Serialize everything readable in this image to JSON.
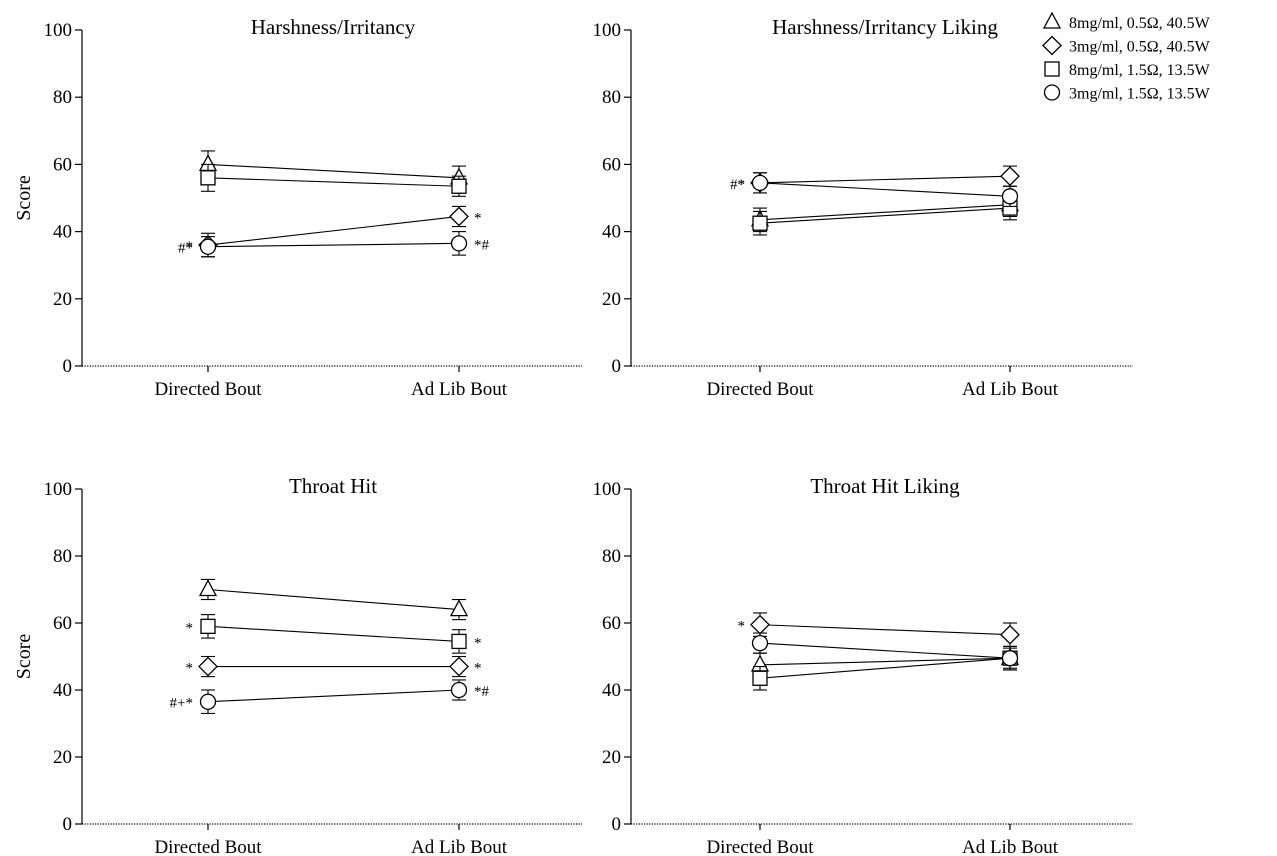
{
  "chart_data": [
    {
      "type": "line",
      "title": "Harshness/Irritancy",
      "ylabel": "Score",
      "xlabel": "",
      "categories": [
        "Directed Bout",
        "Ad Lib Bout"
      ],
      "ylim": [
        0,
        100
      ],
      "yticks": [
        0,
        20,
        40,
        60,
        80,
        100
      ],
      "grid": false,
      "series": [
        {
          "name": "8mg/ml, 0.5Ω, 40.5W",
          "marker": "triangle",
          "values": [
            60,
            56
          ],
          "errors": [
            4,
            3.5
          ],
          "annotations": [
            "",
            ""
          ]
        },
        {
          "name": "3mg/ml, 0.5Ω, 40.5W",
          "marker": "diamond",
          "values": [
            36,
            44.5
          ],
          "errors": [
            3.5,
            3
          ],
          "annotations": [
            "*",
            "*"
          ]
        },
        {
          "name": "8mg/ml, 1.5Ω, 13.5W",
          "marker": "square",
          "values": [
            56,
            53.5
          ],
          "errors": [
            4,
            3
          ],
          "annotations": [
            "",
            ""
          ]
        },
        {
          "name": "3mg/ml, 1.5Ω, 13.5W",
          "marker": "circle",
          "values": [
            35.5,
            36.5
          ],
          "errors": [
            3,
            3.5
          ],
          "annotations": [
            "#*",
            "*#"
          ]
        }
      ]
    },
    {
      "type": "line",
      "title": "Harshness/Irritancy Liking",
      "ylabel": "",
      "xlabel": "",
      "categories": [
        "Directed Bout",
        "Ad Lib Bout"
      ],
      "ylim": [
        0,
        100
      ],
      "yticks": [
        0,
        20,
        40,
        60,
        80,
        100
      ],
      "grid": false,
      "series": [
        {
          "name": "8mg/ml, 0.5Ω, 40.5W",
          "marker": "triangle",
          "values": [
            43.5,
            48
          ],
          "errors": [
            3.5,
            3.5
          ],
          "annotations": [
            "",
            ""
          ]
        },
        {
          "name": "3mg/ml, 0.5Ω, 40.5W",
          "marker": "diamond",
          "values": [
            54.5,
            56.5
          ],
          "errors": [
            3,
            3
          ],
          "annotations": [
            "*",
            ""
          ]
        },
        {
          "name": "8mg/ml, 1.5Ω, 13.5W",
          "marker": "square",
          "values": [
            42.5,
            47
          ],
          "errors": [
            3.5,
            3.5
          ],
          "annotations": [
            "",
            ""
          ]
        },
        {
          "name": "3mg/ml, 1.5Ω, 13.5W",
          "marker": "circle",
          "values": [
            54.5,
            50.5
          ],
          "errors": [
            3,
            3
          ],
          "annotations": [
            "#*",
            ""
          ]
        }
      ]
    },
    {
      "type": "line",
      "title": "Throat Hit",
      "ylabel": "Score",
      "xlabel": "",
      "categories": [
        "Directed Bout",
        "Ad Lib Bout"
      ],
      "ylim": [
        0,
        100
      ],
      "yticks": [
        0,
        20,
        40,
        60,
        80,
        100
      ],
      "grid": false,
      "series": [
        {
          "name": "8mg/ml, 0.5Ω, 40.5W",
          "marker": "triangle",
          "values": [
            70,
            64
          ],
          "errors": [
            3,
            3
          ],
          "annotations": [
            "",
            ""
          ]
        },
        {
          "name": "3mg/ml, 0.5Ω, 40.5W",
          "marker": "diamond",
          "values": [
            47,
            47
          ],
          "errors": [
            3,
            3
          ],
          "annotations": [
            "*",
            "*"
          ]
        },
        {
          "name": "8mg/ml, 1.5Ω, 13.5W",
          "marker": "square",
          "values": [
            59,
            54.5
          ],
          "errors": [
            3.5,
            3.5
          ],
          "annotations": [
            "*",
            "*"
          ]
        },
        {
          "name": "3mg/ml, 1.5Ω, 13.5W",
          "marker": "circle",
          "values": [
            36.5,
            40
          ],
          "errors": [
            3.5,
            3
          ],
          "annotations": [
            "#+*",
            "*#"
          ]
        }
      ]
    },
    {
      "type": "line",
      "title": "Throat Hit Liking",
      "ylabel": "",
      "xlabel": "",
      "categories": [
        "Directed Bout",
        "Ad Lib Bout"
      ],
      "ylim": [
        0,
        100
      ],
      "yticks": [
        0,
        20,
        40,
        60,
        80,
        100
      ],
      "grid": false,
      "series": [
        {
          "name": "8mg/ml, 0.5Ω, 40.5W",
          "marker": "triangle",
          "values": [
            47.5,
            49.5
          ],
          "errors": [
            3.5,
            3.5
          ],
          "annotations": [
            "",
            ""
          ]
        },
        {
          "name": "3mg/ml, 0.5Ω, 40.5W",
          "marker": "diamond",
          "values": [
            59.5,
            56.5
          ],
          "errors": [
            3.5,
            3.5
          ],
          "annotations": [
            "*",
            ""
          ]
        },
        {
          "name": "8mg/ml, 1.5Ω, 13.5W",
          "marker": "square",
          "values": [
            43.5,
            49.5
          ],
          "errors": [
            3.5,
            3.5
          ],
          "annotations": [
            "",
            ""
          ]
        },
        {
          "name": "3mg/ml, 1.5Ω, 13.5W",
          "marker": "circle",
          "values": [
            54,
            49.5
          ],
          "errors": [
            3,
            3
          ],
          "annotations": [
            "",
            ""
          ]
        }
      ]
    }
  ],
  "legend": {
    "placement": "top-right",
    "items": [
      {
        "marker": "triangle",
        "label": "8mg/ml, 0.5Ω, 40.5W"
      },
      {
        "marker": "diamond",
        "label": "3mg/ml, 0.5Ω, 40.5W"
      },
      {
        "marker": "square",
        "label": "8mg/ml, 1.5Ω, 13.5W"
      },
      {
        "marker": "circle",
        "label": "3mg/ml, 1.5Ω, 13.5W"
      }
    ]
  }
}
